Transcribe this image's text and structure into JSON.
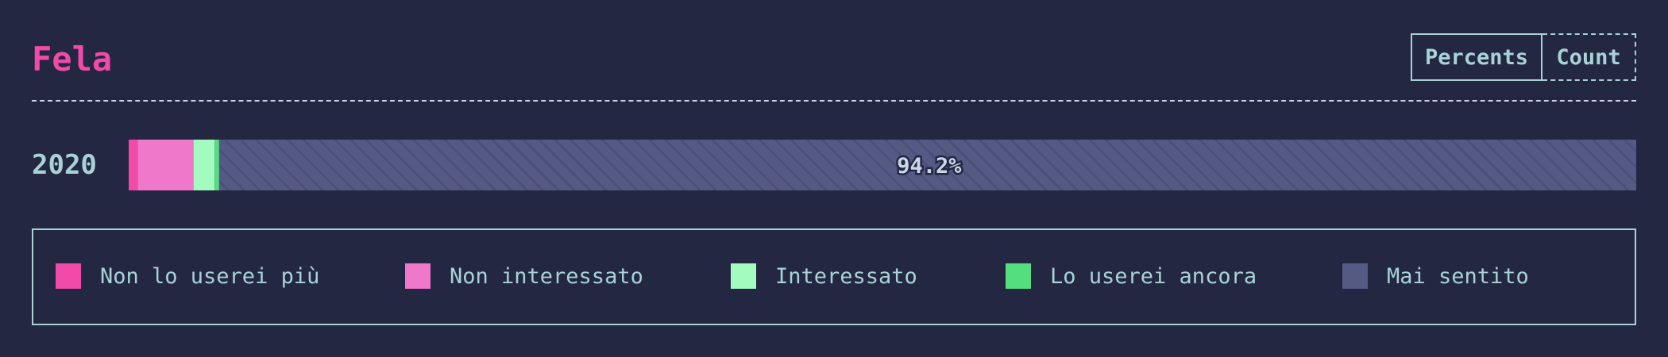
{
  "header": {
    "title": "Fela",
    "toggle": {
      "percents_label": "Percents",
      "count_label": "Count"
    }
  },
  "chart_data": {
    "type": "bar",
    "orientation": "horizontal",
    "stacked": true,
    "categories": [
      "2020"
    ],
    "series": [
      {
        "name": "Non lo userei più",
        "color": "#f14aa8",
        "values": [
          0.6
        ]
      },
      {
        "name": "Non interessato",
        "color": "#ef78cb",
        "values": [
          3.7
        ]
      },
      {
        "name": "Interessato",
        "color": "#a3fbc0",
        "values": [
          1.4
        ]
      },
      {
        "name": "Lo userei ancora",
        "color": "#55de7f",
        "values": [
          0.3
        ]
      },
      {
        "name": "Mai sentito",
        "color": "#555a85",
        "values": [
          94.2
        ]
      }
    ],
    "data_labels": [
      {
        "series": "Mai sentito",
        "category": "2020",
        "text": "94.2%"
      }
    ],
    "xlim": [
      0,
      100
    ],
    "legend_position": "bottom"
  }
}
